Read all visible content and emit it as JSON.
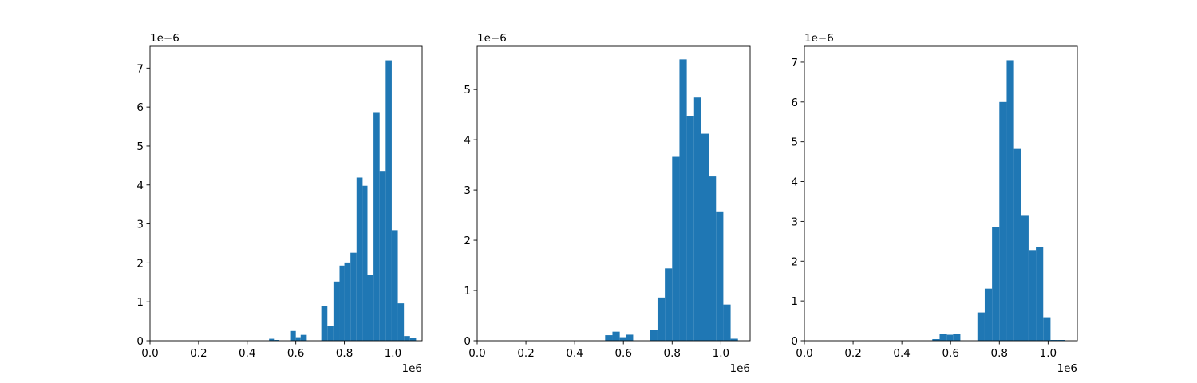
{
  "chart_data": [
    {
      "type": "bar",
      "title": "",
      "xlabel": "",
      "ylabel": "",
      "xlim": [
        0,
        1120000
      ],
      "ylim": [
        0,
        7.56e-06
      ],
      "x_ticks": [
        0,
        200000,
        400000,
        600000,
        800000,
        1000000
      ],
      "x_tick_labels": [
        "0.0",
        "0.2",
        "0.4",
        "0.6",
        "0.8",
        "1.0"
      ],
      "x_offset_label": "1e6",
      "y_ticks": [
        0,
        1e-06,
        2e-06,
        3e-06,
        4e-06,
        5e-06,
        6e-06,
        7e-06
      ],
      "y_tick_labels": [
        "0",
        "1",
        "2",
        "3",
        "4",
        "5",
        "6",
        "7"
      ],
      "y_offset_label": "1e−6",
      "bar_color": "#1f77b4",
      "bins": [
        {
          "x0": 490000,
          "x1": 510000,
          "value": 5e-08
        },
        {
          "x0": 510000,
          "x1": 530000,
          "value": 2e-08
        },
        {
          "x0": 580000,
          "x1": 600000,
          "value": 2.5e-07
        },
        {
          "x0": 600000,
          "x1": 620000,
          "value": 9e-08
        },
        {
          "x0": 620000,
          "x1": 645000,
          "value": 1.5e-07
        },
        {
          "x0": 705000,
          "x1": 730000,
          "value": 9e-07
        },
        {
          "x0": 730000,
          "x1": 755000,
          "value": 3.8e-07
        },
        {
          "x0": 755000,
          "x1": 780000,
          "value": 1.52e-06
        },
        {
          "x0": 780000,
          "x1": 800000,
          "value": 1.93e-06
        },
        {
          "x0": 800000,
          "x1": 825000,
          "value": 2.01e-06
        },
        {
          "x0": 825000,
          "x1": 850000,
          "value": 2.26e-06
        },
        {
          "x0": 850000,
          "x1": 875000,
          "value": 4.19e-06
        },
        {
          "x0": 875000,
          "x1": 895000,
          "value": 3.98e-06
        },
        {
          "x0": 895000,
          "x1": 920000,
          "value": 1.68e-06
        },
        {
          "x0": 920000,
          "x1": 945000,
          "value": 5.87e-06
        },
        {
          "x0": 945000,
          "x1": 970000,
          "value": 4.36e-06
        },
        {
          "x0": 970000,
          "x1": 995000,
          "value": 7.2e-06
        },
        {
          "x0": 995000,
          "x1": 1020000,
          "value": 2.84e-06
        },
        {
          "x0": 1020000,
          "x1": 1045000,
          "value": 9.6e-07
        },
        {
          "x0": 1045000,
          "x1": 1070000,
          "value": 1.2e-07
        },
        {
          "x0": 1070000,
          "x1": 1095000,
          "value": 8e-08
        }
      ]
    },
    {
      "type": "bar",
      "title": "",
      "xlabel": "",
      "ylabel": "",
      "xlim": [
        0,
        1120000
      ],
      "ylim": [
        0,
        5.86e-06
      ],
      "x_ticks": [
        0,
        200000,
        400000,
        600000,
        800000,
        1000000
      ],
      "x_tick_labels": [
        "0.0",
        "0.2",
        "0.4",
        "0.6",
        "0.8",
        "1.0"
      ],
      "x_offset_label": "1e6",
      "y_ticks": [
        0,
        1e-06,
        2e-06,
        3e-06,
        4e-06,
        5e-06
      ],
      "y_tick_labels": [
        "0",
        "1",
        "2",
        "3",
        "4",
        "5"
      ],
      "y_offset_label": "1e−6",
      "bar_color": "#1f77b4",
      "bins": [
        {
          "x0": 525000,
          "x1": 555000,
          "value": 1.1e-07
        },
        {
          "x0": 555000,
          "x1": 585000,
          "value": 1.8e-07
        },
        {
          "x0": 585000,
          "x1": 610000,
          "value": 7e-08
        },
        {
          "x0": 610000,
          "x1": 640000,
          "value": 1.2e-07
        },
        {
          "x0": 710000,
          "x1": 740000,
          "value": 2.1e-07
        },
        {
          "x0": 740000,
          "x1": 770000,
          "value": 8.6e-07
        },
        {
          "x0": 770000,
          "x1": 800000,
          "value": 1.44e-06
        },
        {
          "x0": 800000,
          "x1": 830000,
          "value": 3.66e-06
        },
        {
          "x0": 830000,
          "x1": 860000,
          "value": 5.6e-06
        },
        {
          "x0": 860000,
          "x1": 890000,
          "value": 4.47e-06
        },
        {
          "x0": 890000,
          "x1": 920000,
          "value": 4.84e-06
        },
        {
          "x0": 920000,
          "x1": 950000,
          "value": 4.12e-06
        },
        {
          "x0": 950000,
          "x1": 980000,
          "value": 3.27e-06
        },
        {
          "x0": 980000,
          "x1": 1010000,
          "value": 2.56e-06
        },
        {
          "x0": 1010000,
          "x1": 1040000,
          "value": 7.2e-07
        },
        {
          "x0": 1040000,
          "x1": 1070000,
          "value": 4e-08
        }
      ]
    },
    {
      "type": "bar",
      "title": "",
      "xlabel": "",
      "ylabel": "",
      "xlim": [
        0,
        1120000
      ],
      "ylim": [
        0,
        7.4e-06
      ],
      "x_ticks": [
        0,
        200000,
        400000,
        600000,
        800000,
        1000000
      ],
      "x_tick_labels": [
        "0.0",
        "0.2",
        "0.4",
        "0.6",
        "0.8",
        "1.0"
      ],
      "x_offset_label": "1e6",
      "y_ticks": [
        0,
        1e-06,
        2e-06,
        3e-06,
        4e-06,
        5e-06,
        6e-06,
        7e-06
      ],
      "y_tick_labels": [
        "0",
        "1",
        "2",
        "3",
        "4",
        "5",
        "6",
        "7"
      ],
      "y_offset_label": "1e−6",
      "bar_color": "#1f77b4",
      "bins": [
        {
          "x0": 525000,
          "x1": 555000,
          "value": 4e-08
        },
        {
          "x0": 555000,
          "x1": 585000,
          "value": 1.7e-07
        },
        {
          "x0": 585000,
          "x1": 610000,
          "value": 1.5e-07
        },
        {
          "x0": 610000,
          "x1": 640000,
          "value": 1.7e-07
        },
        {
          "x0": 710000,
          "x1": 740000,
          "value": 7.1e-07
        },
        {
          "x0": 740000,
          "x1": 770000,
          "value": 1.31e-06
        },
        {
          "x0": 770000,
          "x1": 800000,
          "value": 2.86e-06
        },
        {
          "x0": 800000,
          "x1": 830000,
          "value": 6e-06
        },
        {
          "x0": 830000,
          "x1": 860000,
          "value": 7.05e-06
        },
        {
          "x0": 860000,
          "x1": 890000,
          "value": 4.82e-06
        },
        {
          "x0": 890000,
          "x1": 920000,
          "value": 3.14e-06
        },
        {
          "x0": 920000,
          "x1": 950000,
          "value": 2.28e-06
        },
        {
          "x0": 950000,
          "x1": 980000,
          "value": 2.36e-06
        },
        {
          "x0": 980000,
          "x1": 1010000,
          "value": 5.9e-07
        },
        {
          "x0": 1010000,
          "x1": 1040000,
          "value": 2e-08
        },
        {
          "x0": 1040000,
          "x1": 1070000,
          "value": 2e-08
        }
      ]
    }
  ]
}
